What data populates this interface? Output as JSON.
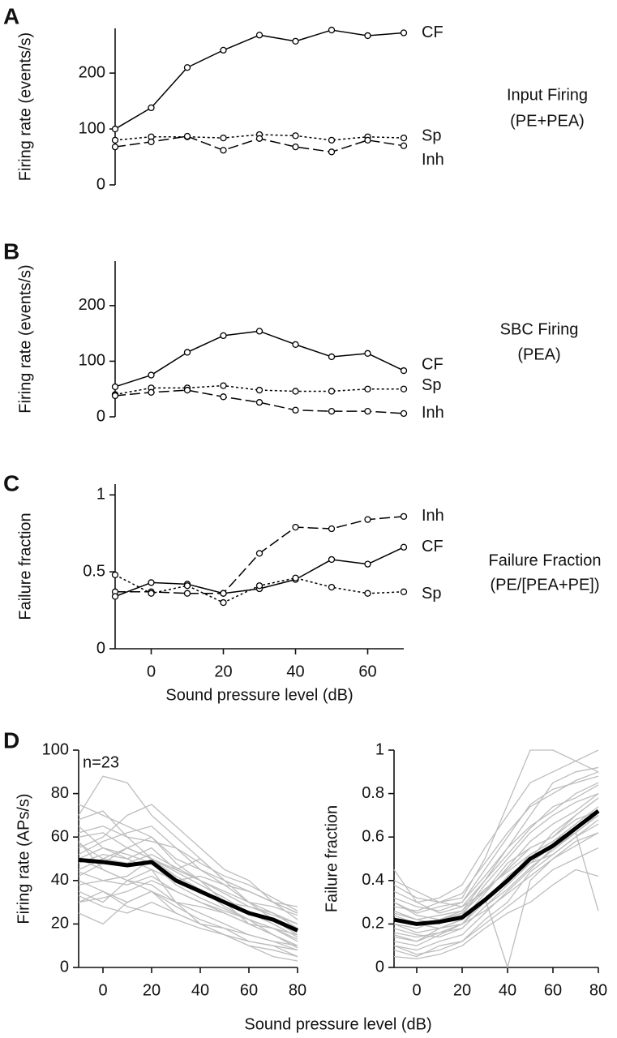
{
  "chart_data": [
    {
      "type": "line",
      "panel": "A",
      "ylabel": "Firing rate (events/s)",
      "side_text": [
        "Input Firing",
        "(PE+PEA)"
      ],
      "marker": "circle",
      "x": [
        -10,
        0,
        10,
        20,
        30,
        40,
        50,
        60,
        70
      ],
      "xlim": [
        -10,
        70
      ],
      "ylim": [
        0,
        280
      ],
      "yticks": [
        0,
        100,
        200
      ],
      "series": [
        {
          "name": "CF",
          "color": "#000000",
          "line_style": "solid",
          "values": [
            100,
            138,
            210,
            241,
            268,
            257,
            277,
            267,
            272
          ]
        },
        {
          "name": "Sp",
          "color": "#000000",
          "line_style": "dotted",
          "values": [
            80,
            86,
            86,
            84,
            90,
            88,
            80,
            86,
            84
          ]
        },
        {
          "name": "Inh",
          "color": "#000000",
          "line_style": "dashed",
          "values": [
            68,
            77,
            87,
            62,
            83,
            68,
            59,
            80,
            70
          ]
        }
      ]
    },
    {
      "type": "line",
      "panel": "B",
      "ylabel": "Firing rate (events/s)",
      "side_text": [
        "SBC Firing",
        "(PEA)"
      ],
      "marker": "circle",
      "x": [
        -10,
        0,
        10,
        20,
        30,
        40,
        50,
        60,
        70
      ],
      "xlim": [
        -10,
        70
      ],
      "ylim": [
        0,
        280
      ],
      "yticks": [
        0,
        100,
        200
      ],
      "series": [
        {
          "name": "CF",
          "color": "#000000",
          "line_style": "solid",
          "values": [
            54,
            75,
            116,
            146,
            154,
            130,
            108,
            114,
            83
          ]
        },
        {
          "name": "Sp",
          "color": "#000000",
          "line_style": "dotted",
          "values": [
            40,
            52,
            52,
            56,
            48,
            46,
            46,
            50,
            50
          ]
        },
        {
          "name": "Inh",
          "color": "#000000",
          "line_style": "dashed",
          "values": [
            38,
            44,
            48,
            36,
            26,
            12,
            10,
            10,
            6
          ]
        }
      ]
    },
    {
      "type": "line",
      "panel": "C",
      "ylabel": "Failure fraction",
      "xlabel": "Sound pressure level (dB)",
      "side_text": [
        "Failure Fraction",
        "(PE/[PEA+PE])"
      ],
      "marker": "circle",
      "x": [
        -10,
        0,
        10,
        20,
        30,
        40,
        50,
        60,
        70
      ],
      "xlim": [
        -10,
        70
      ],
      "xticks": [
        0,
        20,
        40,
        60
      ],
      "ylim": [
        0,
        1.07
      ],
      "yticks": [
        0,
        0.5,
        1
      ],
      "series": [
        {
          "name": "Inh",
          "color": "#000000",
          "line_style": "dashed",
          "values": [
            0.37,
            0.37,
            0.36,
            0.36,
            0.62,
            0.79,
            0.78,
            0.84,
            0.86
          ]
        },
        {
          "name": "CF",
          "color": "#000000",
          "line_style": "solid",
          "values": [
            0.34,
            0.43,
            0.42,
            0.36,
            0.39,
            0.45,
            0.58,
            0.55,
            0.66
          ]
        },
        {
          "name": "Sp",
          "color": "#000000",
          "line_style": "dotted",
          "values": [
            0.48,
            0.36,
            0.41,
            0.3,
            0.41,
            0.46,
            0.4,
            0.36,
            0.37
          ]
        }
      ]
    },
    {
      "type": "line",
      "panel": "D",
      "ylabel": "Firing rate (APs/s)",
      "xlabel": "Sound pressure level (dB)",
      "annotation": "n=23",
      "x": [
        -10,
        0,
        10,
        20,
        30,
        40,
        50,
        60,
        70,
        80
      ],
      "xlim": [
        -10,
        80
      ],
      "xticks": [
        0,
        20,
        40,
        60,
        80
      ],
      "ylim": [
        0,
        100
      ],
      "yticks": [
        0,
        20,
        40,
        60,
        80,
        100
      ],
      "series": [
        {
          "color": "#bdbdbd",
          "values": [
            60,
            62,
            55,
            50,
            45,
            40,
            35,
            30,
            25,
            20
          ]
        },
        {
          "color": "#bdbdbd",
          "values": [
            35,
            30,
            40,
            45,
            30,
            20,
            15,
            10,
            8,
            5
          ]
        },
        {
          "color": "#bdbdbd",
          "values": [
            70,
            88,
            85,
            70,
            60,
            50,
            40,
            35,
            30,
            25
          ]
        },
        {
          "color": "#bdbdbd",
          "values": [
            45,
            50,
            55,
            60,
            48,
            40,
            30,
            20,
            15,
            10
          ]
        },
        {
          "color": "#bdbdbd",
          "values": [
            30,
            32,
            35,
            40,
            35,
            30,
            25,
            20,
            18,
            15
          ]
        },
        {
          "color": "#bdbdbd",
          "values": [
            55,
            60,
            70,
            75,
            65,
            55,
            45,
            40,
            30,
            25
          ]
        },
        {
          "color": "#bdbdbd",
          "values": [
            40,
            35,
            30,
            35,
            25,
            20,
            15,
            10,
            5,
            3
          ]
        },
        {
          "color": "#bdbdbd",
          "values": [
            65,
            55,
            50,
            45,
            40,
            42,
            38,
            35,
            30,
            28
          ]
        },
        {
          "color": "#bdbdbd",
          "values": [
            50,
            45,
            40,
            38,
            30,
            25,
            20,
            15,
            12,
            8
          ]
        },
        {
          "color": "#bdbdbd",
          "values": [
            25,
            20,
            30,
            35,
            28,
            22,
            18,
            12,
            10,
            5
          ]
        },
        {
          "color": "#bdbdbd",
          "values": [
            75,
            70,
            65,
            60,
            50,
            45,
            40,
            35,
            30,
            22
          ]
        },
        {
          "color": "#bdbdbd",
          "values": [
            48,
            52,
            50,
            55,
            45,
            50,
            40,
            30,
            28,
            24
          ]
        },
        {
          "color": "#bdbdbd",
          "values": [
            58,
            45,
            40,
            35,
            30,
            28,
            25,
            20,
            15,
            10
          ]
        },
        {
          "color": "#bdbdbd",
          "values": [
            38,
            40,
            42,
            50,
            40,
            35,
            30,
            28,
            25,
            18
          ]
        },
        {
          "color": "#bdbdbd",
          "values": [
            62,
            65,
            60,
            58,
            55,
            45,
            38,
            30,
            22,
            15
          ]
        },
        {
          "color": "#bdbdbd",
          "values": [
            30,
            35,
            28,
            25,
            22,
            18,
            15,
            12,
            10,
            8
          ]
        },
        {
          "color": "#bdbdbd",
          "values": [
            52,
            58,
            62,
            65,
            55,
            48,
            42,
            38,
            32,
            26
          ]
        },
        {
          "color": "#bdbdbd",
          "values": [
            44,
            40,
            38,
            42,
            35,
            30,
            26,
            22,
            18,
            12
          ]
        },
        {
          "color": "#bdbdbd",
          "values": [
            68,
            72,
            60,
            50,
            42,
            36,
            28,
            22,
            15,
            9
          ]
        },
        {
          "color": "#bdbdbd",
          "values": [
            33,
            28,
            25,
            30,
            25,
            20,
            18,
            15,
            12,
            10
          ]
        },
        {
          "color": "#bdbdbd",
          "values": [
            57,
            50,
            48,
            52,
            46,
            40,
            34,
            28,
            24,
            20
          ]
        },
        {
          "color": "#bdbdbd",
          "values": [
            42,
            48,
            55,
            50,
            44,
            38,
            32,
            25,
            20,
            14
          ]
        },
        {
          "color": "#bdbdbd",
          "values": [
            50,
            55,
            52,
            48,
            38,
            32,
            27,
            22,
            18,
            13
          ]
        },
        {
          "color": "#000000",
          "line_style": "thick",
          "values": [
            49.5,
            48.5,
            47,
            48.5,
            40,
            35,
            30,
            25,
            22,
            17
          ]
        }
      ]
    },
    {
      "type": "line",
      "ylabel": "Failure fraction",
      "x": [
        -10,
        0,
        10,
        20,
        30,
        40,
        50,
        60,
        70,
        80
      ],
      "xlim": [
        -10,
        80
      ],
      "xticks": [
        0,
        20,
        40,
        60,
        80
      ],
      "ylim": [
        0,
        1
      ],
      "yticks": [
        0,
        0.2,
        0.4,
        0.6,
        0.8,
        1
      ],
      "series": [
        {
          "color": "#bdbdbd",
          "values": [
            0.2,
            0.18,
            0.22,
            0.25,
            0.35,
            0.45,
            0.55,
            0.6,
            0.7,
            0.78
          ]
        },
        {
          "color": "#bdbdbd",
          "values": [
            0.45,
            0.3,
            0.25,
            0.28,
            0.4,
            0.55,
            0.7,
            0.85,
            0.9,
            0.92
          ]
        },
        {
          "color": "#bdbdbd",
          "values": [
            0.1,
            0.08,
            0.12,
            0.15,
            0.25,
            0.35,
            0.45,
            0.55,
            0.62,
            0.7
          ]
        },
        {
          "color": "#bdbdbd",
          "values": [
            0.3,
            0.25,
            0.28,
            0.3,
            0.45,
            0.6,
            0.75,
            0.82,
            0.85,
            0.88
          ]
        },
        {
          "color": "#bdbdbd",
          "values": [
            0.15,
            0.12,
            0.18,
            0.22,
            0.3,
            0.4,
            0.52,
            0.58,
            0.66,
            0.74
          ]
        },
        {
          "color": "#bdbdbd",
          "values": [
            0.25,
            0.22,
            0.2,
            0.24,
            0.38,
            0.5,
            0.62,
            0.7,
            0.76,
            0.8
          ]
        },
        {
          "color": "#bdbdbd",
          "values": [
            0.35,
            0.3,
            0.32,
            0.38,
            0.55,
            0.7,
            0.85,
            0.9,
            0.95,
            1
          ]
        },
        {
          "color": "#bdbdbd",
          "values": [
            0.08,
            0.05,
            0.1,
            0.12,
            0.2,
            0.28,
            0.36,
            0.45,
            0.5,
            0.55
          ]
        },
        {
          "color": "#bdbdbd",
          "values": [
            0.22,
            0.2,
            0.18,
            0.2,
            0.3,
            0.42,
            0.5,
            0.62,
            0.7,
            0.78
          ]
        },
        {
          "color": "#bdbdbd",
          "values": [
            0.4,
            0.35,
            0.3,
            0.32,
            0.5,
            0.75,
            1,
            1,
            0.95,
            0.9
          ]
        },
        {
          "color": "#bdbdbd",
          "values": [
            0.05,
            0.04,
            0.06,
            0.1,
            0.18,
            0.25,
            0.3,
            0.38,
            0.45,
            0.42
          ]
        },
        {
          "color": "#bdbdbd",
          "values": [
            0.28,
            0.26,
            0.3,
            0.28,
            0.35,
            0.48,
            0.55,
            0.6,
            0.68,
            0.72
          ]
        },
        {
          "color": "#bdbdbd",
          "values": [
            0.18,
            0.15,
            0.14,
            0.18,
            0.28,
            0.38,
            0.48,
            0.52,
            0.6,
            0.66
          ]
        },
        {
          "color": "#bdbdbd",
          "values": [
            0.32,
            0.28,
            0.26,
            0.3,
            0.42,
            0.55,
            0.65,
            0.72,
            0.8,
            0.85
          ]
        },
        {
          "color": "#bdbdbd",
          "values": [
            0.12,
            0.1,
            0.15,
            0.2,
            0.32,
            0,
            0.4,
            0.5,
            0.58,
            0.62
          ]
        },
        {
          "color": "#bdbdbd",
          "values": [
            0.26,
            0.22,
            0.24,
            0.26,
            0.36,
            0.44,
            0.52,
            0.58,
            0.64,
            0.7
          ]
        },
        {
          "color": "#bdbdbd",
          "values": [
            0.14,
            0.12,
            0.16,
            0.2,
            0.26,
            0.34,
            0.42,
            0.5,
            0.56,
            0.62
          ]
        },
        {
          "color": "#bdbdbd",
          "values": [
            0.38,
            0.32,
            0.3,
            0.34,
            0.48,
            0.62,
            0.74,
            0.8,
            0.86,
            0.9
          ]
        },
        {
          "color": "#bdbdbd",
          "values": [
            0.2,
            0.16,
            0.18,
            0.22,
            0.34,
            0.46,
            0.58,
            0.66,
            0.72,
            0.8
          ]
        },
        {
          "color": "#bdbdbd",
          "values": [
            0.3,
            0.24,
            0.22,
            0.26,
            0.4,
            0.52,
            0.64,
            0.74,
            0.78,
            0.84
          ]
        },
        {
          "color": "#bdbdbd",
          "values": [
            0.1,
            0.06,
            0.08,
            0.12,
            0.22,
            0.3,
            0.44,
            0.52,
            0.6,
            0.68
          ]
        },
        {
          "color": "#bdbdbd",
          "values": [
            0.24,
            0.2,
            0.22,
            0.24,
            0.32,
            0.4,
            0.48,
            0.56,
            0.62,
            0.26
          ]
        },
        {
          "color": "#bdbdbd",
          "values": [
            0.16,
            0.14,
            0.16,
            0.18,
            0.28,
            0.36,
            0.46,
            0.54,
            0.62,
            0.7
          ]
        },
        {
          "color": "#000000",
          "line_style": "thick",
          "values": [
            0.22,
            0.2,
            0.21,
            0.23,
            0.31,
            0.4,
            0.5,
            0.56,
            0.64,
            0.72
          ]
        }
      ]
    }
  ]
}
